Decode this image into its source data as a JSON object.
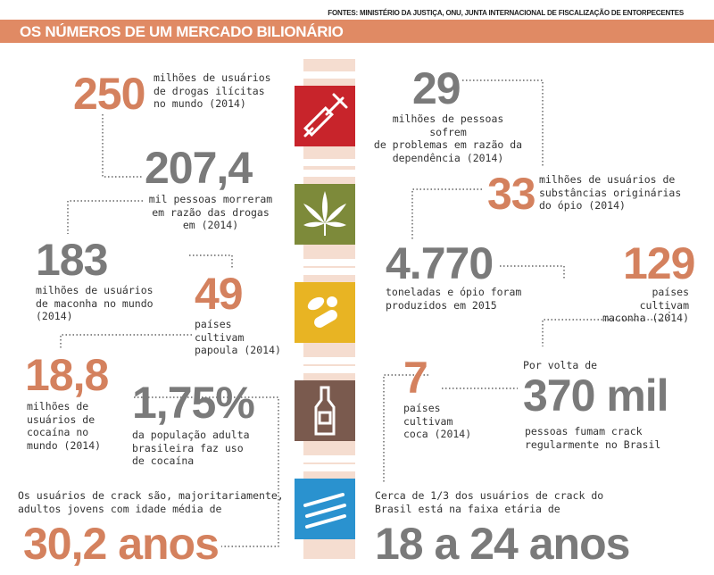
{
  "sources": "FONTES: MINISTÉRIO DA JUSTIÇA, ONU, JUNTA INTERNACIONAL DE FISCALIZAÇÃO DE ENTORPECENTES",
  "title": "OS NÚMEROS DE UM MERCADO BILIONÁRIO",
  "colors": {
    "accent": "#d4815e",
    "banner": "#e08a64",
    "icon_red": "#c8242b",
    "icon_green": "#7d8a3a",
    "icon_yellow": "#e8b423",
    "icon_brown": "#7a5a4e",
    "icon_blue": "#2a92cf"
  },
  "icons": [
    "syringe-icon",
    "cannabis-leaf-icon",
    "pills-icon",
    "bottle-icon",
    "cocaine-lines-icon"
  ],
  "stats": {
    "users_num": "250",
    "users_txt": "milhões de usuários\nde drogas ilícitas\nno mundo (2014)",
    "deaths_num": "207,4",
    "deaths_txt": "mil pessoas morreram\nem razão das drogas\nem (2014)",
    "maconha_num": "183",
    "maconha_txt": "milhões de usuários\nde maconha no mundo\n(2014)",
    "papoula_num": "49",
    "papoula_txt": "países\ncultivam\npapoula (2014)",
    "cocaina_num": "18,8",
    "cocaina_txt": "milhões de\nusuários de\ncocaína no\nmundo (2014)",
    "pop_num": "1,75%",
    "pop_txt": "da população adulta\nbrasileira faz uso\nde cocaína",
    "crack_age_txt": "Os usuários de crack são, majoritariamente,\nadultos jovens com idade média de",
    "crack_age_num": "30,2 anos",
    "problems_num": "29",
    "problems_txt": "milhões de pessoas sofrem\nde problemas em razão da\ndependência (2014)",
    "opio_num": "33",
    "opio_txt": "milhões de usuários de\nsubstâncias originárias\ndo ópio (2014)",
    "tons_num": "4.770",
    "tons_txt": "toneladas e ópio foram\nproduzidos em 2015",
    "maconha_paises_num": "129",
    "maconha_paises_txt": "países\ncultivam\nmaconha (2014)",
    "coca_num": "7",
    "coca_txt": "países\ncultivam\ncoca (2014)",
    "crack_pre": "Por volta de",
    "crack_num": "370 mil",
    "crack_txt": "pessoas fumam crack\nregularmente no Brasil",
    "crack_range_txt": "Cerca de 1/3 dos usuários de crack do\nBrasil está na faixa etária de",
    "crack_range_num": "18 a 24 anos"
  }
}
